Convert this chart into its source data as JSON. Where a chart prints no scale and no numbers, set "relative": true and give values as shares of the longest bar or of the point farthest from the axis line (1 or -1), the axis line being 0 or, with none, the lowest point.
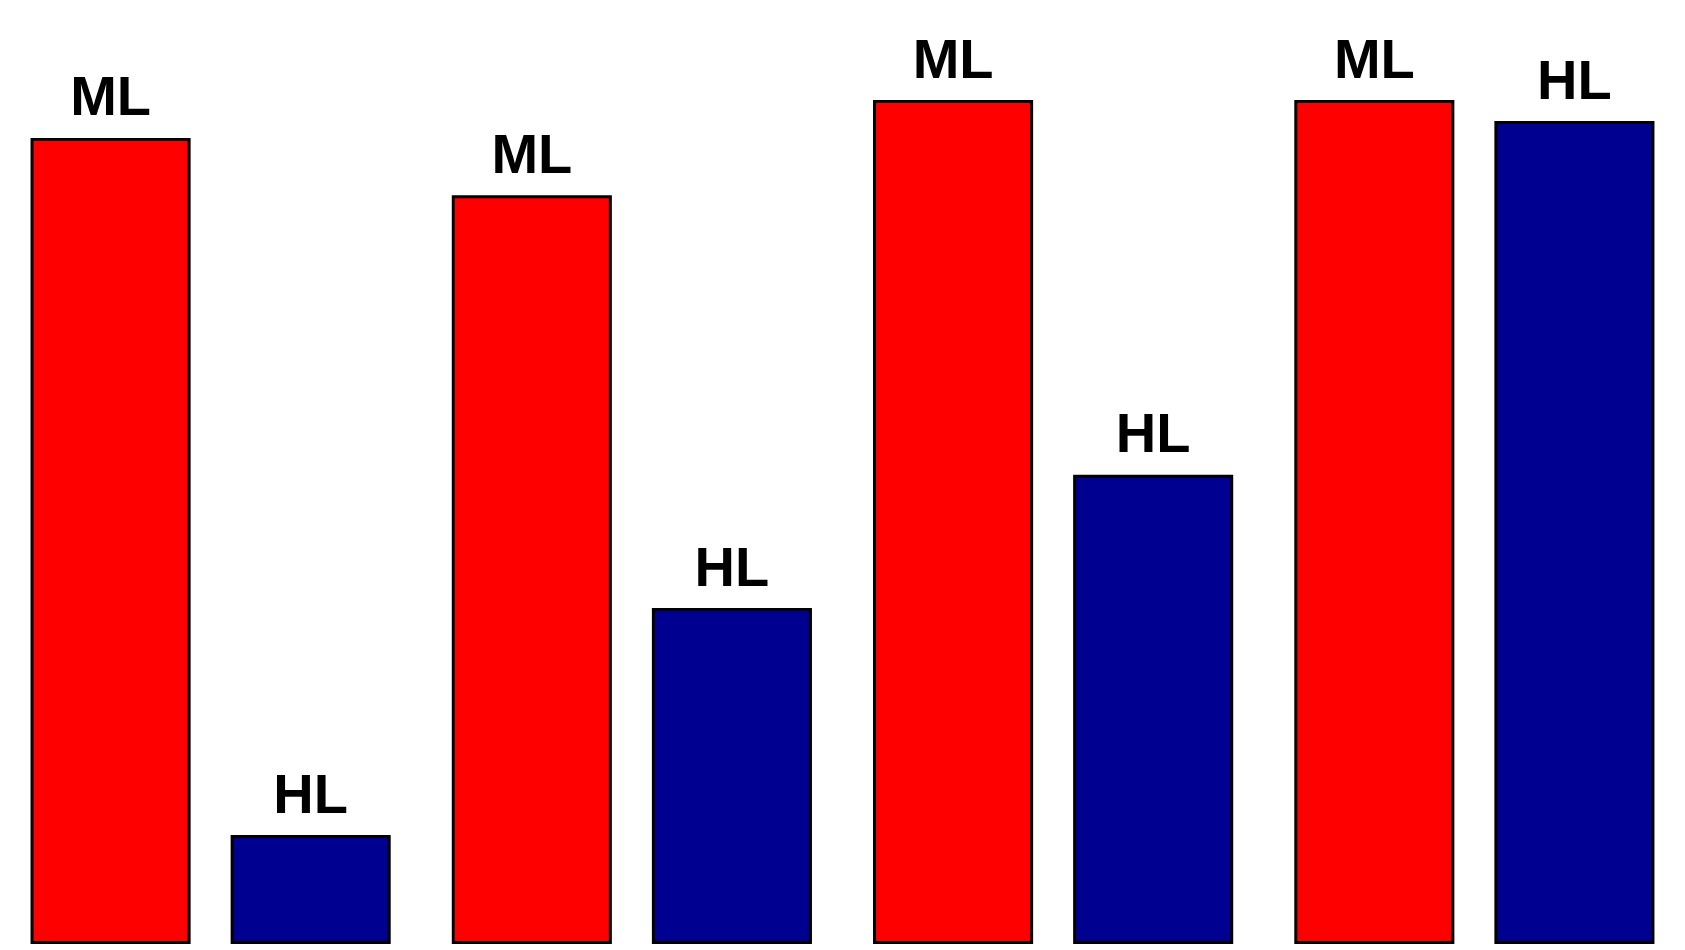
{
  "chart_data": {
    "type": "bar",
    "relative": true,
    "categories": [
      null,
      null,
      null,
      null
    ],
    "legend": false,
    "series": [
      {
        "name": "ML",
        "color": "#ff0000",
        "values": [
          0.955,
          0.887,
          1,
          1
        ]
      },
      {
        "name": "HL",
        "color": "#000090",
        "values": [
          0.129,
          0.398,
          0.556,
          0.975
        ]
      }
    ]
  }
}
